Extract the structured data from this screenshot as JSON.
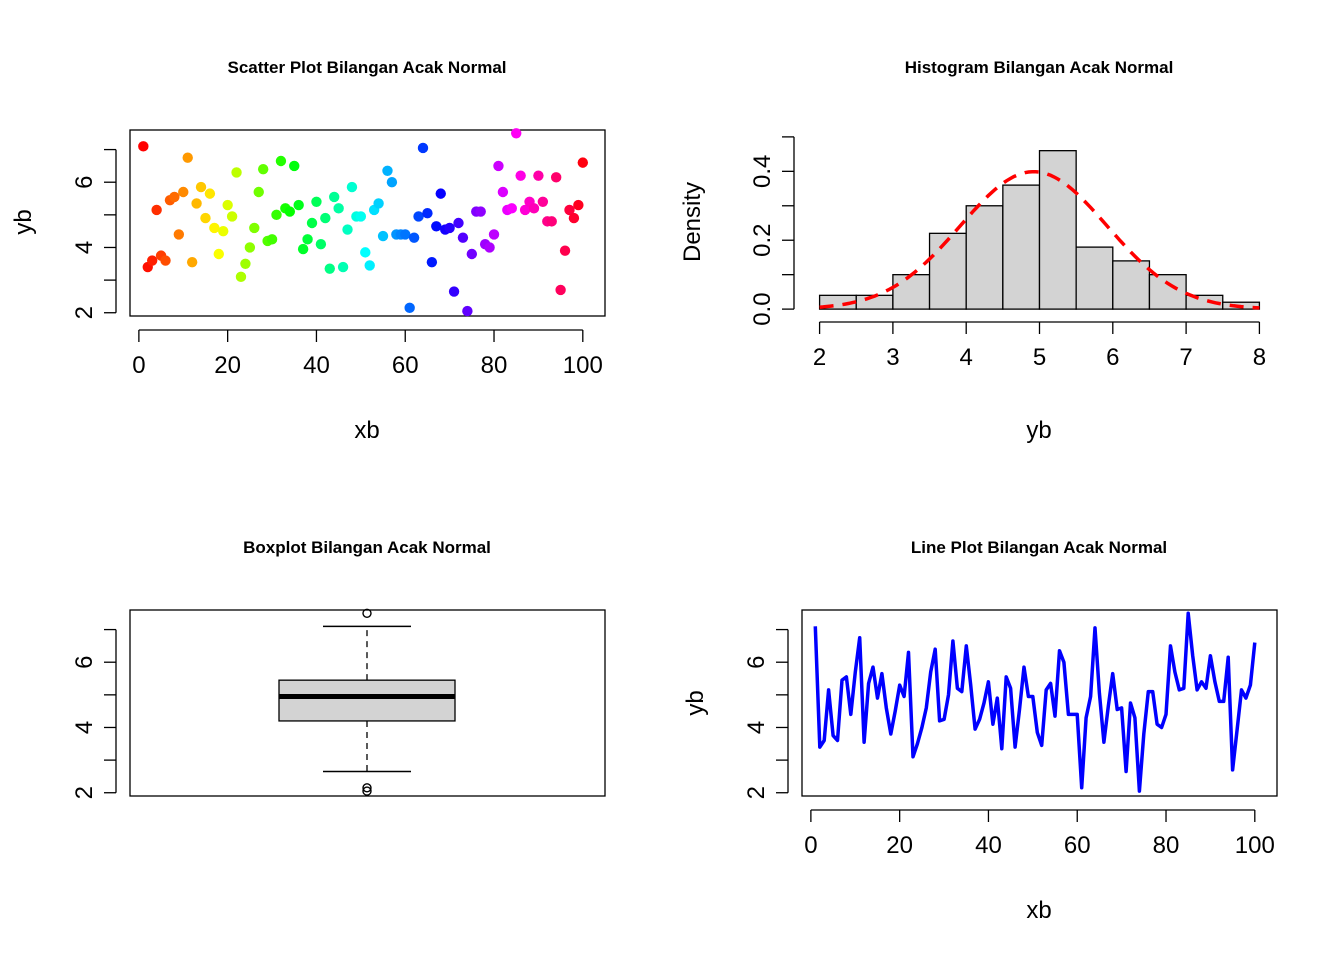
{
  "colors": {
    "histogram_fill": "#d3d3d3",
    "density_curve": "#ff0000",
    "line_plot": "#0000ff",
    "box_fill": "#d3d3d3"
  },
  "chart_data": [
    {
      "type": "scatter",
      "title": "Scatter Plot Bilangan Acak Normal",
      "xlabel": "xb",
      "ylabel": "yb",
      "xlim": [
        -2,
        105
      ],
      "ylim": [
        1.9,
        7.6
      ],
      "xticks": [
        0,
        20,
        40,
        60,
        80,
        100
      ],
      "yticks": [
        2,
        3,
        4,
        5,
        6,
        7
      ],
      "ytick_labels": [
        "2",
        "",
        "4",
        "",
        "6",
        ""
      ],
      "point_colors": "rainbow palette by index (red → orange → yellow → green → cyan → blue → purple → magenta → red)",
      "x": [
        1,
        2,
        3,
        4,
        5,
        6,
        7,
        8,
        9,
        10,
        11,
        12,
        13,
        14,
        15,
        16,
        17,
        18,
        19,
        20,
        21,
        22,
        23,
        24,
        25,
        26,
        27,
        28,
        29,
        30,
        31,
        32,
        33,
        34,
        35,
        36,
        37,
        38,
        39,
        40,
        41,
        42,
        43,
        44,
        45,
        46,
        47,
        48,
        49,
        50,
        51,
        52,
        53,
        54,
        55,
        56,
        57,
        58,
        59,
        60,
        61,
        62,
        63,
        64,
        65,
        66,
        67,
        68,
        69,
        70,
        71,
        72,
        73,
        74,
        75,
        76,
        77,
        78,
        79,
        80,
        81,
        82,
        83,
        84,
        85,
        86,
        87,
        88,
        89,
        90,
        91,
        92,
        93,
        94,
        95,
        96,
        97,
        98,
        99,
        100
      ],
      "y": [
        7.1,
        3.4,
        3.6,
        5.15,
        3.75,
        3.6,
        5.45,
        5.55,
        4.4,
        5.7,
        6.75,
        3.55,
        5.35,
        5.85,
        4.9,
        5.65,
        4.6,
        3.8,
        4.5,
        5.3,
        4.95,
        6.3,
        3.1,
        3.5,
        4.0,
        4.6,
        5.7,
        6.4,
        4.2,
        4.25,
        5.0,
        6.65,
        5.2,
        5.1,
        6.5,
        5.3,
        3.95,
        4.25,
        4.75,
        5.4,
        4.1,
        4.9,
        3.35,
        5.55,
        5.2,
        3.4,
        4.55,
        5.85,
        4.95,
        4.95,
        3.85,
        3.45,
        5.15,
        5.35,
        4.35,
        6.35,
        6.0,
        4.4,
        4.4,
        4.4,
        2.15,
        4.3,
        4.95,
        7.05,
        5.05,
        3.55,
        4.65,
        5.65,
        4.55,
        4.6,
        2.65,
        4.75,
        4.3,
        2.05,
        3.8,
        5.1,
        5.1,
        4.1,
        4.0,
        4.4,
        6.5,
        5.7,
        5.15,
        5.2,
        7.5,
        6.2,
        5.15,
        5.4,
        5.2,
        6.2,
        5.4,
        4.8,
        4.8,
        6.15,
        2.7,
        3.9,
        5.15,
        4.9,
        5.3,
        6.6
      ]
    },
    {
      "type": "bar",
      "subtype": "histogram with density curve",
      "title": "Histogram Bilangan Acak Normal",
      "xlabel": "yb",
      "ylabel": "Density",
      "xlim": [
        2,
        8
      ],
      "ylim": [
        0,
        0.5
      ],
      "xticks": [
        2,
        3,
        4,
        5,
        6,
        7,
        8
      ],
      "yticks": [
        0.0,
        0.1,
        0.2,
        0.3,
        0.4,
        0.5
      ],
      "ytick_labels": [
        "0.0",
        "",
        "0.2",
        "",
        "0.4",
        ""
      ],
      "bins": [
        2.0,
        2.5,
        3.0,
        3.5,
        4.0,
        4.5,
        5.0,
        5.5,
        6.0,
        6.5,
        7.0,
        7.5,
        8.0
      ],
      "densities": [
        0.04,
        0.04,
        0.1,
        0.22,
        0.3,
        0.36,
        0.46,
        0.18,
        0.14,
        0.1,
        0.04,
        0.02
      ],
      "density_curve": {
        "style": "dashed",
        "mean": 4.92,
        "sd": 1.0
      }
    },
    {
      "type": "box",
      "title": "Boxplot Bilangan Acak Normal",
      "ylim": [
        1.9,
        7.6
      ],
      "yticks": [
        2,
        3,
        4,
        5,
        6,
        7
      ],
      "ytick_labels": [
        "2",
        "",
        "4",
        "",
        "6",
        ""
      ],
      "whisker_low": 2.65,
      "q1": 4.2,
      "median": 4.95,
      "q3": 5.45,
      "whisker_high": 7.1,
      "outliers": [
        7.5,
        2.15,
        2.05
      ]
    },
    {
      "type": "line",
      "title": "Line Plot Bilangan Acak Normal",
      "xlabel": "xb",
      "ylabel": "yb",
      "xlim": [
        -2,
        105
      ],
      "ylim": [
        1.9,
        7.6
      ],
      "xticks": [
        0,
        20,
        40,
        60,
        80,
        100
      ],
      "yticks": [
        2,
        3,
        4,
        5,
        6,
        7
      ],
      "ytick_labels": [
        "2",
        "",
        "4",
        "",
        "6",
        ""
      ],
      "series_ref": "same y values as scatter plot"
    }
  ]
}
